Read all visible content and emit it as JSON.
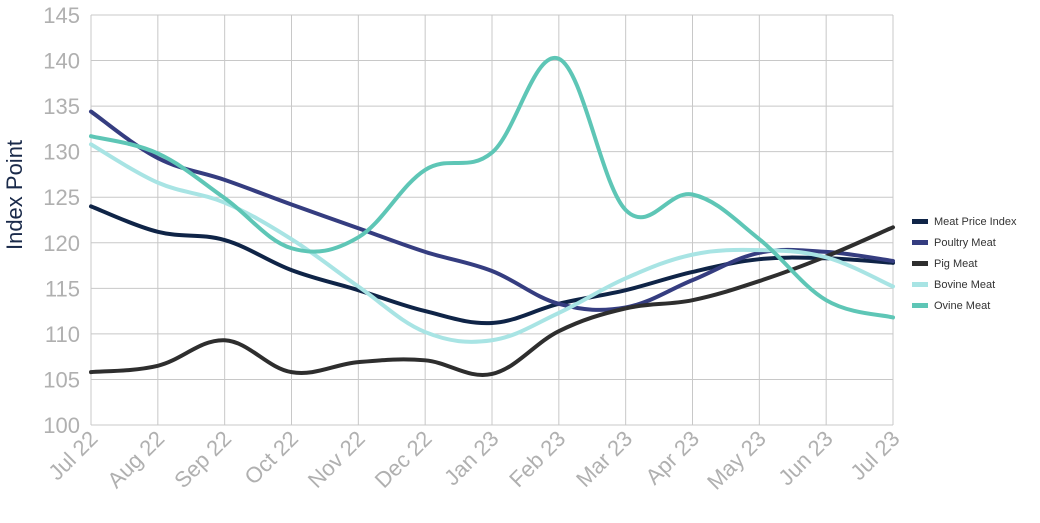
{
  "chart_data": {
    "type": "line",
    "ylabel": "Index Point",
    "ylim": [
      100,
      145
    ],
    "yticks": [
      "100",
      "105",
      "110",
      "115",
      "120",
      "125",
      "130",
      "135",
      "140",
      "145"
    ],
    "categories": [
      "Jul 22",
      "Aug 22",
      "Sep 22",
      "Oct 22",
      "Nov 22",
      "Dec 22",
      "Jan 23",
      "Feb 23",
      "Mar 23",
      "Apr 23",
      "May 23",
      "Jun 23",
      "Jul 23"
    ],
    "grid": true,
    "legend_position": "right",
    "series": [
      {
        "name": "Meat Price Index",
        "color": "#0f2447",
        "values": [
          124,
          121.2,
          120.3,
          117,
          114.8,
          112.5,
          111.2,
          113.3,
          114.8,
          116.8,
          118.2,
          118.3,
          117.8
        ]
      },
      {
        "name": "Poultry Meat",
        "color": "#353d80",
        "values": [
          134.4,
          129.3,
          126.9,
          124.2,
          121.6,
          119,
          116.9,
          113.3,
          112.9,
          115.9,
          118.9,
          119,
          118
        ]
      },
      {
        "name": "Pig Meat",
        "color": "#2e2e2e",
        "values": [
          105.8,
          106.5,
          109.3,
          105.8,
          106.9,
          107.1,
          105.6,
          110.3,
          112.8,
          113.7,
          115.8,
          118.5,
          121.7
        ]
      },
      {
        "name": "Bovine Meat",
        "color": "#a8e4e4",
        "values": [
          130.8,
          126.6,
          124.4,
          120.4,
          115.2,
          110.2,
          109.3,
          112.3,
          116.1,
          118.7,
          119.2,
          118.4,
          115.2
        ]
      },
      {
        "name": "Ovine Meat",
        "color": "#5ec6b6",
        "values": [
          131.7,
          129.8,
          124.9,
          119.4,
          120.6,
          128,
          129.9,
          140.2,
          123.6,
          125.3,
          120.4,
          113.7,
          111.8
        ]
      }
    ]
  }
}
